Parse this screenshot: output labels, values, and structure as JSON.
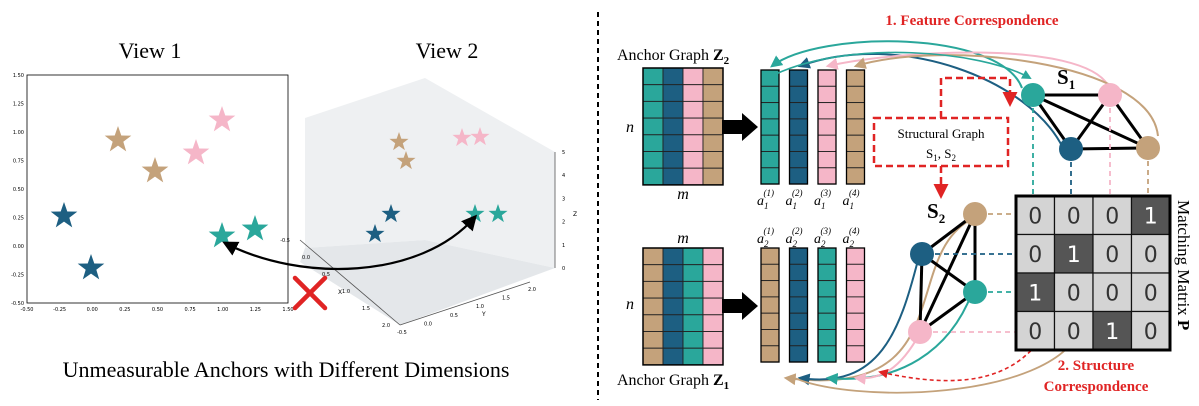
{
  "left": {
    "view1_title": "View 1",
    "view2_title": "View 2",
    "caption": "Unmeasurable Anchors with Different Dimensions",
    "view1_xticks": [
      "-0.50",
      "-0.25",
      "0.00",
      "0.25",
      "0.50",
      "0.75",
      "1.00",
      "1.25",
      "1.50"
    ],
    "view1_yticks": [
      "1.50",
      "1.25",
      "1.00",
      "0.75",
      "0.50",
      "0.25",
      "0.00",
      "-0.25",
      "-0.50"
    ],
    "view2_x_label": "X",
    "view2_y_label": "Y",
    "view2_z_label": "Z",
    "view2_xticks": [
      "-0.5",
      "0.0",
      "0.5",
      "1.0",
      "1.5",
      "2.0"
    ],
    "view2_yticks": [
      "-0.5",
      "0.0",
      "0.5",
      "1.0",
      "1.5",
      "2.0"
    ],
    "view2_zticks": [
      "0",
      "1",
      "2",
      "3",
      "4",
      "5"
    ]
  },
  "right": {
    "feature_correspondence": "1. Feature Correspondence",
    "structure_correspondence_1": "2. Structure",
    "structure_correspondence_2": "Correspondence",
    "anchor_graph_z2": "Anchor Graph ",
    "z2_symbol": "Z",
    "z2_sub": "2",
    "anchor_graph_z1": "Anchor Graph ",
    "z1_symbol": "Z",
    "z1_sub": "1",
    "n_label": "n",
    "m_label": "m",
    "structural_graph_1": "Structural Graph",
    "structural_graph_2": "S",
    "s1_symbol": "S",
    "s1_sub": "1",
    "s2_symbol": "S",
    "s2_sub": "2",
    "matching_matrix_label": "Matching Matrix ",
    "matching_matrix_symbol": "P",
    "a1_labels": [
      "1",
      "2",
      "3",
      "4"
    ],
    "a2_labels": [
      "1",
      "2",
      "3",
      "4"
    ],
    "matrix": [
      [
        "0",
        "0",
        "0",
        "1"
      ],
      [
        "0",
        "1",
        "0",
        "0"
      ],
      [
        "1",
        "0",
        "0",
        "0"
      ],
      [
        "0",
        "0",
        "1",
        "0"
      ]
    ]
  },
  "colors": {
    "teal": "#2aa79b",
    "navy": "#1d5f82",
    "pink": "#f5b6c8",
    "tan": "#c4a27b",
    "red": "#e02424",
    "matrix_dark": "#555555",
    "matrix_light": "#d4d4d4"
  }
}
